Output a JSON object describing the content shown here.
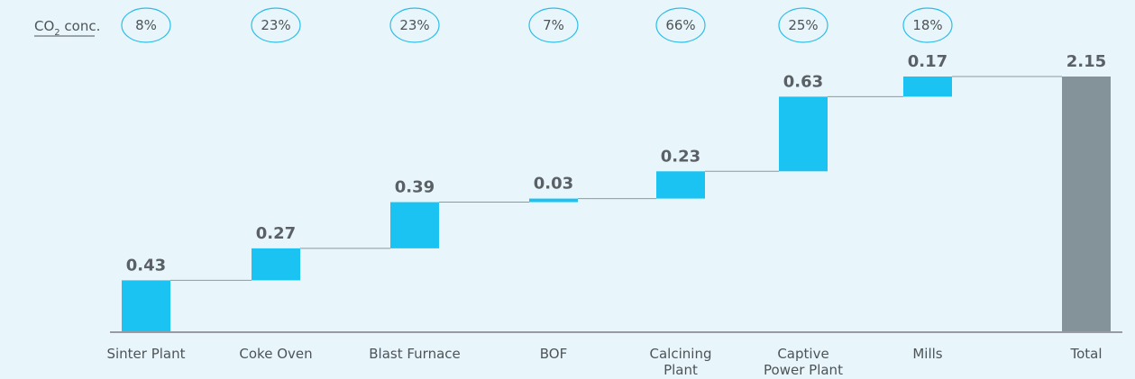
{
  "chart_data": {
    "type": "waterfall",
    "conc_label_main": "CO",
    "conc_label_sub": "2",
    "conc_label_tail": " conc.",
    "categories": [
      [
        "Sinter Plant"
      ],
      [
        "Coke Oven"
      ],
      [
        "Blast Furnace"
      ],
      [
        "BOF"
      ],
      [
        "Calcining",
        "Plant"
      ],
      [
        "Captive",
        "Power Plant"
      ],
      [
        "Mills"
      ],
      [
        "Total"
      ]
    ],
    "values": [
      0.43,
      0.27,
      0.39,
      0.03,
      0.23,
      0.63,
      0.17,
      2.15
    ],
    "value_labels": [
      "0.43",
      "0.27",
      "0.39",
      "0.03",
      "0.23",
      "0.63",
      "0.17",
      "2.15"
    ],
    "co2_concentration": [
      "8%",
      "23%",
      "23%",
      "7%",
      "66%",
      "25%",
      "18%"
    ],
    "total_index": 7,
    "ylim": [
      0,
      2.15
    ]
  },
  "colors": {
    "bar": "#1ac3f2",
    "total": "#84939a",
    "connector": "#8a9aa0",
    "axis": "#7a7f84",
    "circle": "#2bbde8"
  }
}
